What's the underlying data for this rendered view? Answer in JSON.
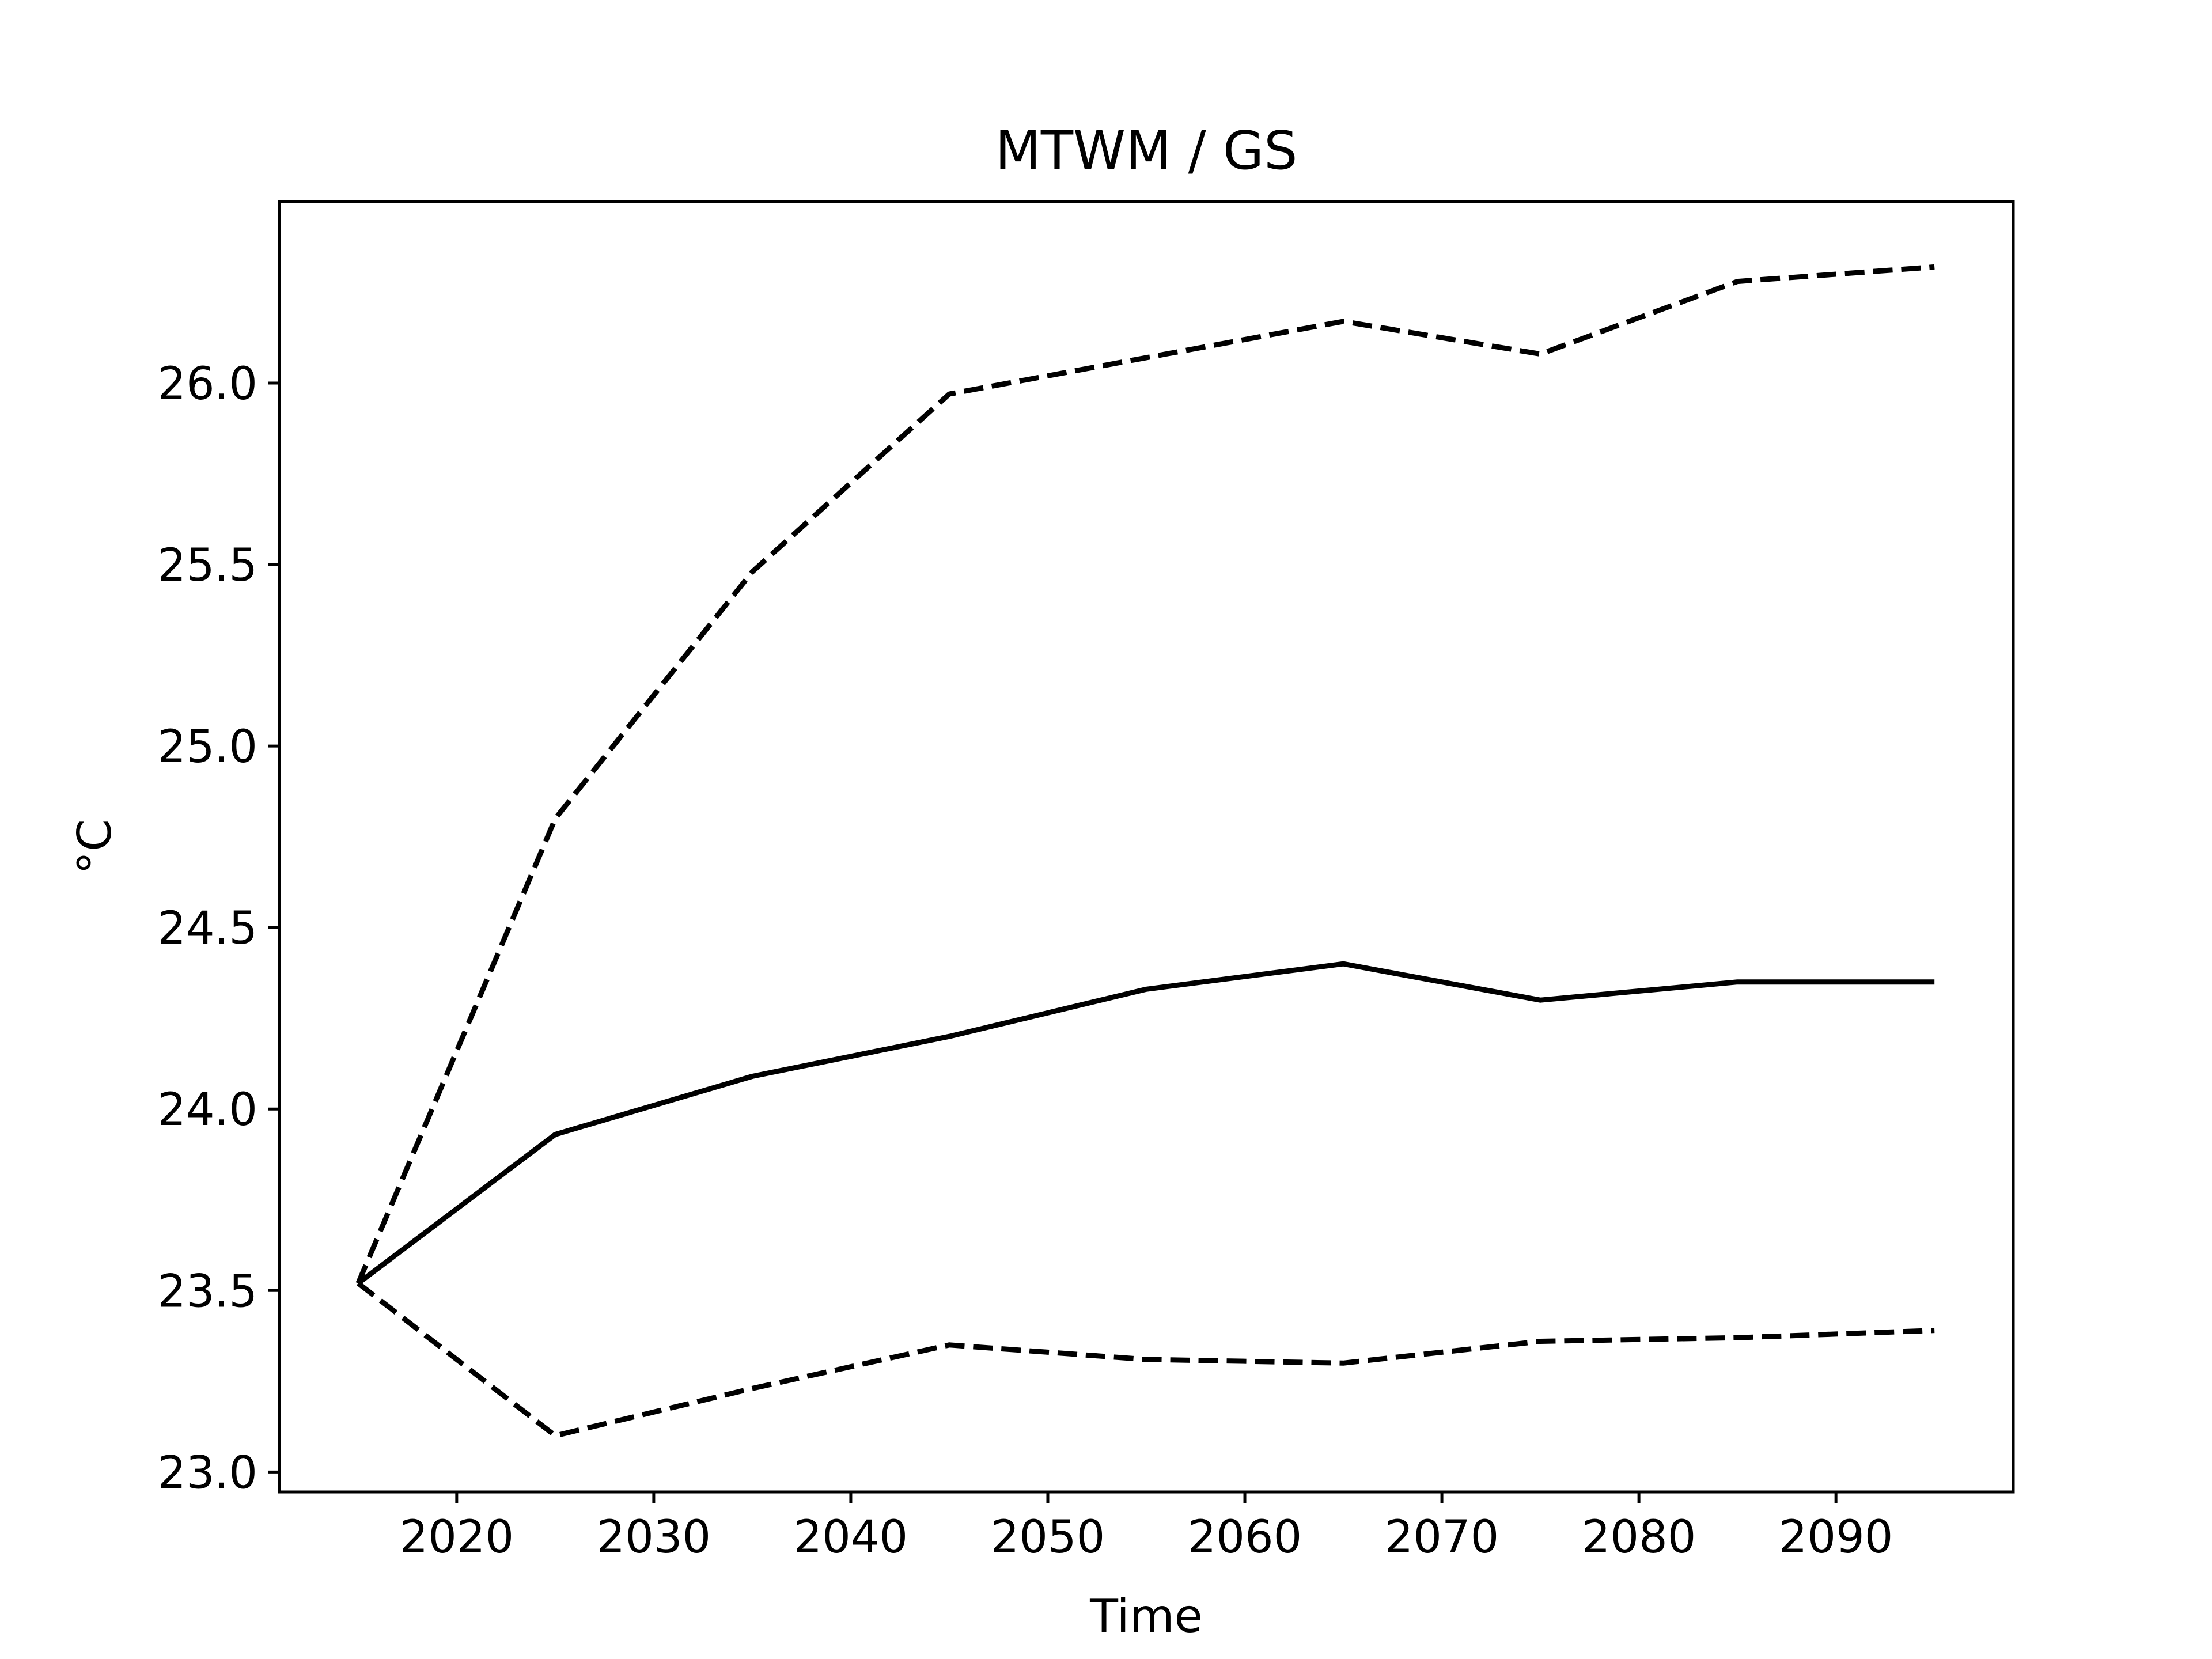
{
  "chart_data": {
    "type": "line",
    "title": "MTWM / GS",
    "xlabel": "Time",
    "ylabel": "°C",
    "xlim": [
      2011,
      2099
    ],
    "ylim": [
      22.945,
      26.5
    ],
    "xticks": [
      2020,
      2030,
      2040,
      2050,
      2060,
      2070,
      2080,
      2090
    ],
    "yticks": [
      23.0,
      23.5,
      24.0,
      24.5,
      25.0,
      25.5,
      26.0
    ],
    "ytick_labels": [
      "23.0",
      "23.5",
      "24.0",
      "24.5",
      "25.0",
      "25.5",
      "26.0"
    ],
    "grid": false,
    "legend": false,
    "x": [
      2015,
      2025,
      2035,
      2045,
      2055,
      2065,
      2075,
      2085,
      2095
    ],
    "series": [
      {
        "style": "dashed",
        "color": "#000000",
        "values": [
          23.52,
          24.8,
          25.48,
          25.97,
          26.07,
          26.17,
          26.08,
          26.28,
          26.32
        ]
      },
      {
        "style": "solid",
        "color": "#000000",
        "values": [
          23.52,
          23.93,
          24.09,
          24.2,
          24.33,
          24.4,
          24.3,
          24.35,
          24.35
        ]
      },
      {
        "style": "dashed",
        "color": "#000000",
        "values": [
          23.52,
          23.1,
          23.23,
          23.35,
          23.31,
          23.3,
          23.36,
          23.37,
          23.39
        ]
      }
    ]
  }
}
